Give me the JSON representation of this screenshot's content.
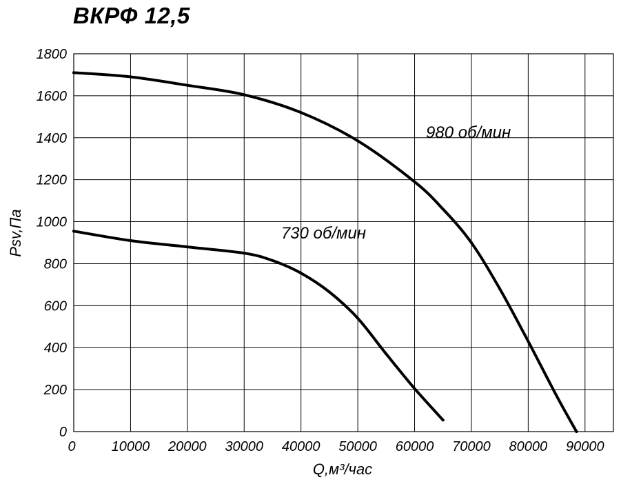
{
  "chart_data": {
    "type": "line",
    "title": "ВКРФ 12,5",
    "xlabel": "Q,м³/час",
    "ylabel": "Psv,Па",
    "xlim": [
      0,
      95000
    ],
    "ylim": [
      0,
      1800
    ],
    "x_ticks": [
      "0",
      "10000",
      "20000",
      "30000",
      "40000",
      "50000",
      "60000",
      "70000",
      "80000",
      "90000"
    ],
    "y_ticks": [
      "0",
      "200",
      "400",
      "600",
      "800",
      "1000",
      "1200",
      "1400",
      "1600",
      "1800"
    ],
    "grid": true,
    "series": [
      {
        "name": "980 об/мин",
        "color": "#000000",
        "points": [
          [
            0,
            1710
          ],
          [
            10000,
            1690
          ],
          [
            20000,
            1650
          ],
          [
            30000,
            1605
          ],
          [
            40000,
            1520
          ],
          [
            50000,
            1385
          ],
          [
            60000,
            1190
          ],
          [
            65000,
            1060
          ],
          [
            70000,
            900
          ],
          [
            75000,
            680
          ],
          [
            80000,
            430
          ],
          [
            85000,
            170
          ],
          [
            88500,
            0
          ]
        ]
      },
      {
        "name": "730 об/мин",
        "color": "#000000",
        "points": [
          [
            0,
            955
          ],
          [
            10000,
            910
          ],
          [
            20000,
            880
          ],
          [
            30000,
            850
          ],
          [
            35000,
            815
          ],
          [
            40000,
            755
          ],
          [
            45000,
            665
          ],
          [
            50000,
            540
          ],
          [
            55000,
            370
          ],
          [
            60000,
            205
          ],
          [
            65000,
            55
          ]
        ]
      }
    ]
  }
}
